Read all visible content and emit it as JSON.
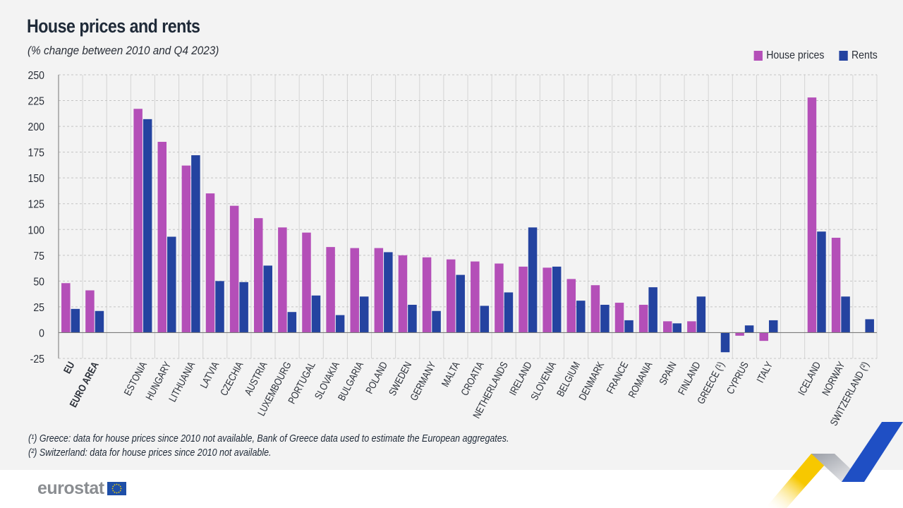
{
  "header": {
    "title": "House prices and rents",
    "subtitle": "(% change between 2010 and Q4 2023)"
  },
  "legend": [
    {
      "label": "House prices",
      "color": "#b44fb8"
    },
    {
      "label": "Rents",
      "color": "#2443a0"
    }
  ],
  "footnotes": [
    "(¹) Greece: data for house prices since 2010 not available, Bank of Greece data used to estimate the European aggregates.",
    "(²) Switzerland: data for house prices since 2010 not available."
  ],
  "branding": {
    "logo_text": "eurostat",
    "flag_icon": "eu-flag-icon"
  },
  "chart_data": {
    "type": "bar",
    "title": "House prices and rents",
    "subtitle": "(% change between 2010 and Q4 2023)",
    "xlabel": "",
    "ylabel": "",
    "ylim": [
      -25,
      250
    ],
    "yticks": [
      -25,
      0,
      25,
      50,
      75,
      100,
      125,
      150,
      175,
      200,
      225,
      250
    ],
    "grid": true,
    "legend_position": "top-right",
    "categories": [
      "EU",
      "EURO AREA",
      "",
      "ESTONIA",
      "HUNGARY",
      "LITHUANIA",
      "LATVIA",
      "CZECHIA",
      "AUSTRIA",
      "LUXEMBOURG",
      "PORTUGAL",
      "SLOVAKIA",
      "BULGARIA",
      "POLAND",
      "SWEDEN",
      "GERMANY",
      "MALTA",
      "CROATIA",
      "NETHERLANDS",
      "IRELAND",
      "SLOVENIA",
      "BELGIUM",
      "DENMARK",
      "FRANCE",
      "ROMANIA",
      "SPAIN",
      "FINLAND",
      "GREECE (¹)",
      "CYPRUS",
      "ITALY",
      "",
      "ICELAND",
      "NORWAY",
      "SWITZERLAND (²)"
    ],
    "bold_categories": [
      "EU",
      "EURO AREA"
    ],
    "series": [
      {
        "name": "House prices",
        "color": "#b44fb8",
        "values": [
          48,
          41,
          null,
          217,
          185,
          162,
          135,
          123,
          111,
          102,
          97,
          83,
          82,
          82,
          75,
          73,
          71,
          69,
          67,
          64,
          63,
          52,
          46,
          29,
          27,
          11,
          11,
          null,
          -3,
          -8,
          null,
          228,
          92,
          null
        ]
      },
      {
        "name": "Rents",
        "color": "#2443a0",
        "values": [
          23,
          21,
          null,
          207,
          93,
          172,
          50,
          49,
          65,
          20,
          36,
          17,
          35,
          78,
          27,
          21,
          56,
          26,
          39,
          102,
          64,
          31,
          27,
          12,
          44,
          9,
          35,
          -19,
          7,
          12,
          null,
          98,
          35,
          13
        ]
      }
    ]
  }
}
